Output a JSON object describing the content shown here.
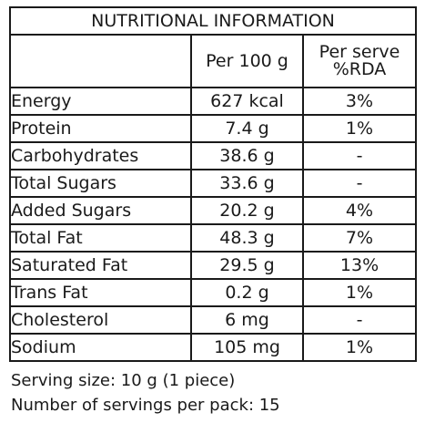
{
  "table": {
    "title": "NUTRITIONAL INFORMATION",
    "columns": {
      "per_100g": "Per 100 g",
      "per_serve_line1": "Per serve",
      "per_serve_line2": "%RDA"
    },
    "rows": [
      {
        "name": "Energy",
        "amount": "627 kcal",
        "rda": "3%"
      },
      {
        "name": "Protein",
        "amount": "7.4 g",
        "rda": "1%"
      },
      {
        "name": "Carbohydrates",
        "amount": "38.6 g",
        "rda": "-"
      },
      {
        "name": "Total Sugars",
        "amount": "33.6 g",
        "rda": "-"
      },
      {
        "name": "Added Sugars",
        "amount": "20.2 g",
        "rda": "4%"
      },
      {
        "name": "Total Fat",
        "amount": "48.3 g",
        "rda": "7%"
      },
      {
        "name": "Saturated Fat",
        "amount": "29.5 g",
        "rda": "13%"
      },
      {
        "name": "Trans Fat",
        "amount": "0.2 g",
        "rda": "1%"
      },
      {
        "name": "Cholesterol",
        "amount": "6 mg",
        "rda": "-"
      },
      {
        "name": "Sodium",
        "amount": "105 mg",
        "rda": "1%"
      }
    ]
  },
  "footer": {
    "serving_size": "Serving size: 10 g (1 piece)",
    "servings_per_pack": "Number of servings per pack: 15"
  }
}
